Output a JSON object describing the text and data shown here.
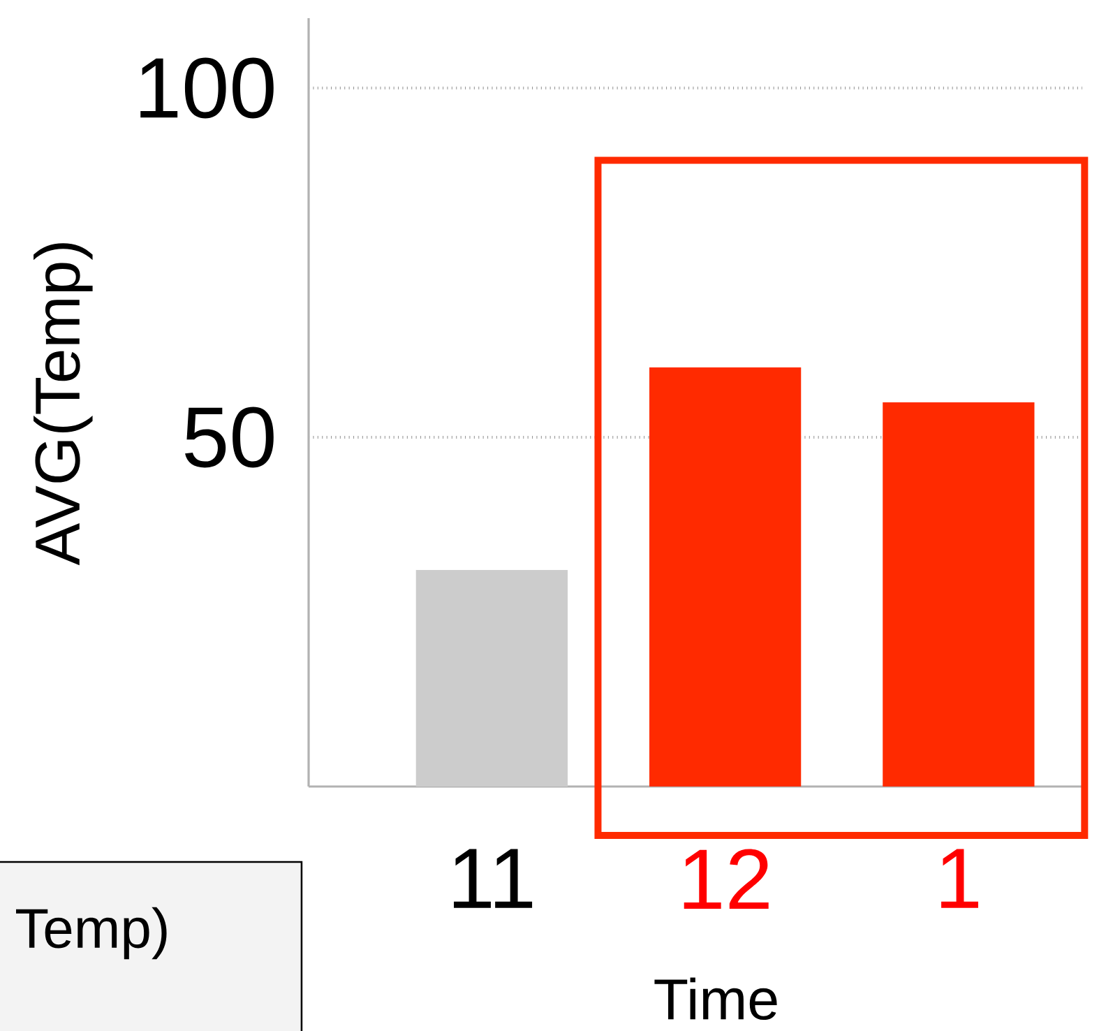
{
  "chart_data": {
    "type": "bar",
    "xlabel": "Time",
    "ylabel": "AVG(Temp)",
    "categories": [
      "11",
      "12",
      "1"
    ],
    "values": [
      31,
      60,
      55
    ],
    "colors": [
      "#cccccc",
      "#ff2a00",
      "#ff2a00"
    ],
    "ylim": [
      0,
      110
    ],
    "yticks": [
      50,
      100
    ],
    "grid": "y",
    "annotations": [
      "Temp)"
    ]
  }
}
